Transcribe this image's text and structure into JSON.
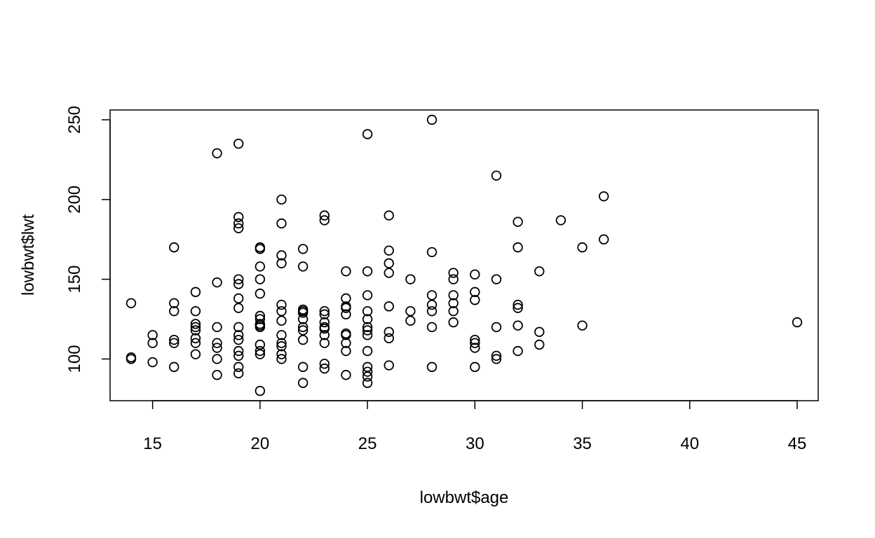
{
  "chart_data": {
    "type": "scatter",
    "title": "",
    "xlabel": "lowbwt$age",
    "ylabel": "lowbwt$lwt",
    "xlim": [
      14,
      45
    ],
    "ylim": [
      80,
      250
    ],
    "xticks": [
      15,
      20,
      25,
      30,
      35,
      40,
      45
    ],
    "yticks": [
      100,
      150,
      200,
      250
    ],
    "grid": false,
    "legend": "none",
    "marker": "open-circle",
    "color": "#000000",
    "points": [
      [
        14,
        135
      ],
      [
        14,
        101
      ],
      [
        14,
        100
      ],
      [
        15,
        115
      ],
      [
        15,
        110
      ],
      [
        15,
        98
      ],
      [
        16,
        170
      ],
      [
        16,
        135
      ],
      [
        16,
        130
      ],
      [
        16,
        112
      ],
      [
        16,
        110
      ],
      [
        16,
        95
      ],
      [
        17,
        142
      ],
      [
        17,
        130
      ],
      [
        17,
        122
      ],
      [
        17,
        120
      ],
      [
        17,
        118
      ],
      [
        17,
        113
      ],
      [
        17,
        110
      ],
      [
        17,
        103
      ],
      [
        18,
        229
      ],
      [
        18,
        148
      ],
      [
        18,
        120
      ],
      [
        18,
        110
      ],
      [
        18,
        107
      ],
      [
        18,
        100
      ],
      [
        18,
        90
      ],
      [
        19,
        235
      ],
      [
        19,
        189
      ],
      [
        19,
        185
      ],
      [
        19,
        182
      ],
      [
        19,
        150
      ],
      [
        19,
        147
      ],
      [
        19,
        138
      ],
      [
        19,
        132
      ],
      [
        19,
        120
      ],
      [
        19,
        115
      ],
      [
        19,
        112
      ],
      [
        19,
        105
      ],
      [
        19,
        102
      ],
      [
        19,
        95
      ],
      [
        19,
        91
      ],
      [
        20,
        170
      ],
      [
        20,
        169
      ],
      [
        20,
        158
      ],
      [
        20,
        150
      ],
      [
        20,
        141
      ],
      [
        20,
        127
      ],
      [
        20,
        125
      ],
      [
        20,
        122
      ],
      [
        20,
        121
      ],
      [
        20,
        120
      ],
      [
        20,
        109
      ],
      [
        20,
        105
      ],
      [
        20,
        103
      ],
      [
        20,
        80
      ],
      [
        21,
        200
      ],
      [
        21,
        185
      ],
      [
        21,
        165
      ],
      [
        21,
        160
      ],
      [
        21,
        134
      ],
      [
        21,
        130
      ],
      [
        21,
        124
      ],
      [
        21,
        115
      ],
      [
        21,
        110
      ],
      [
        21,
        108
      ],
      [
        21,
        103
      ],
      [
        21,
        100
      ],
      [
        22,
        169
      ],
      [
        22,
        158
      ],
      [
        22,
        131
      ],
      [
        22,
        130
      ],
      [
        22,
        129
      ],
      [
        22,
        125
      ],
      [
        22,
        120
      ],
      [
        22,
        118
      ],
      [
        22,
        112
      ],
      [
        22,
        95
      ],
      [
        22,
        85
      ],
      [
        23,
        190
      ],
      [
        23,
        187
      ],
      [
        23,
        130
      ],
      [
        23,
        128
      ],
      [
        23,
        123
      ],
      [
        23,
        120
      ],
      [
        23,
        119
      ],
      [
        23,
        115
      ],
      [
        23,
        110
      ],
      [
        23,
        97
      ],
      [
        23,
        94
      ],
      [
        24,
        155
      ],
      [
        24,
        138
      ],
      [
        24,
        133
      ],
      [
        24,
        132
      ],
      [
        24,
        128
      ],
      [
        24,
        116
      ],
      [
        24,
        115
      ],
      [
        24,
        110
      ],
      [
        24,
        105
      ],
      [
        24,
        90
      ],
      [
        25,
        241
      ],
      [
        25,
        155
      ],
      [
        25,
        140
      ],
      [
        25,
        130
      ],
      [
        25,
        125
      ],
      [
        25,
        120
      ],
      [
        25,
        118
      ],
      [
        25,
        115
      ],
      [
        25,
        105
      ],
      [
        25,
        95
      ],
      [
        25,
        92
      ],
      [
        25,
        89
      ],
      [
        25,
        85
      ],
      [
        26,
        190
      ],
      [
        26,
        168
      ],
      [
        26,
        160
      ],
      [
        26,
        154
      ],
      [
        26,
        133
      ],
      [
        26,
        117
      ],
      [
        26,
        113
      ],
      [
        26,
        96
      ],
      [
        27,
        150
      ],
      [
        27,
        130
      ],
      [
        27,
        124
      ],
      [
        28,
        250
      ],
      [
        28,
        167
      ],
      [
        28,
        140
      ],
      [
        28,
        134
      ],
      [
        28,
        130
      ],
      [
        28,
        120
      ],
      [
        28,
        95
      ],
      [
        29,
        154
      ],
      [
        29,
        150
      ],
      [
        29,
        140
      ],
      [
        29,
        135
      ],
      [
        29,
        130
      ],
      [
        29,
        123
      ],
      [
        30,
        153
      ],
      [
        30,
        142
      ],
      [
        30,
        137
      ],
      [
        30,
        112
      ],
      [
        30,
        110
      ],
      [
        30,
        107
      ],
      [
        30,
        95
      ],
      [
        31,
        215
      ],
      [
        31,
        150
      ],
      [
        31,
        120
      ],
      [
        31,
        102
      ],
      [
        31,
        100
      ],
      [
        32,
        186
      ],
      [
        32,
        170
      ],
      [
        32,
        134
      ],
      [
        32,
        132
      ],
      [
        32,
        121
      ],
      [
        32,
        105
      ],
      [
        33,
        155
      ],
      [
        33,
        117
      ],
      [
        33,
        109
      ],
      [
        34,
        187
      ],
      [
        35,
        170
      ],
      [
        35,
        121
      ],
      [
        36,
        202
      ],
      [
        36,
        175
      ],
      [
        45,
        123
      ]
    ]
  }
}
